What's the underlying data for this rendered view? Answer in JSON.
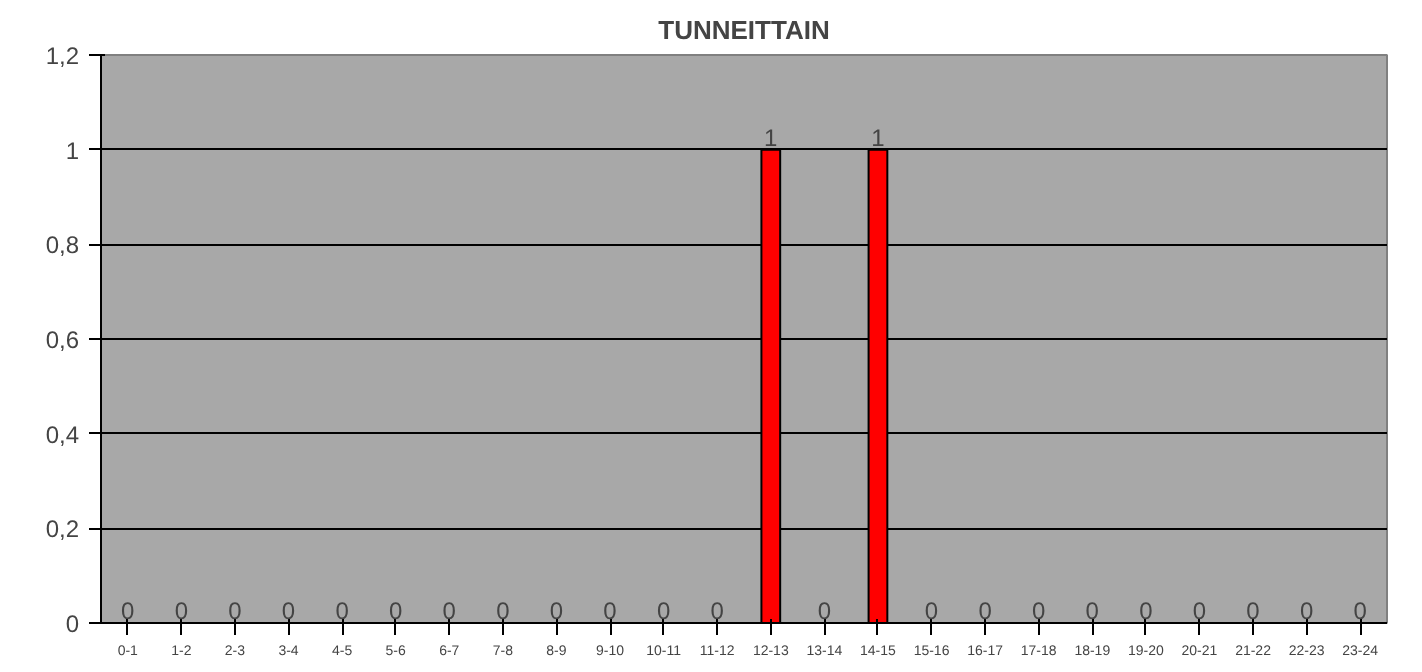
{
  "chart_data": {
    "type": "bar",
    "title": "TUNNEITTAIN",
    "categories": [
      "0-1",
      "1-2",
      "2-3",
      "3-4",
      "4-5",
      "5-6",
      "6-7",
      "7-8",
      "8-9",
      "9-10",
      "10-11",
      "11-12",
      "12-13",
      "13-14",
      "14-15",
      "15-16",
      "16-17",
      "17-18",
      "18-19",
      "19-20",
      "20-21",
      "21-22",
      "22-23",
      "23-24"
    ],
    "values": [
      0,
      0,
      0,
      0,
      0,
      0,
      0,
      0,
      0,
      0,
      0,
      0,
      1,
      0,
      1,
      0,
      0,
      0,
      0,
      0,
      0,
      0,
      0,
      0
    ],
    "color": "#ff0000",
    "ylim": [
      0,
      1.2
    ],
    "yticks": [
      0,
      {
        "value": 0.2,
        "label": "0,2"
      },
      {
        "value": 0.4,
        "label": "0,4"
      },
      {
        "value": 0.6,
        "label": "0,6"
      },
      {
        "value": 0.8,
        "label": "0,8"
      },
      1,
      {
        "value": 1.2,
        "label": "1,2"
      }
    ],
    "grid": "y",
    "data_labels": true
  }
}
